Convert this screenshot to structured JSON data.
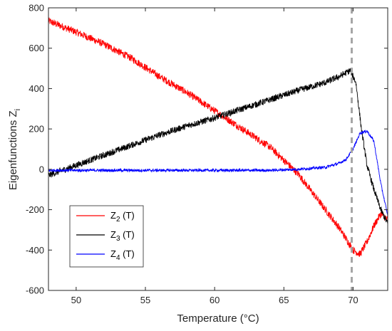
{
  "chart_data": {
    "type": "line",
    "xlabel": "Temperature (°C)",
    "ylabel": "Eigenfunctions Z",
    "ylabel_sub": "i",
    "xlim": [
      48,
      72.5
    ],
    "ylim": [
      -600,
      800
    ],
    "xticks": [
      50,
      55,
      60,
      65,
      70
    ],
    "yticks": [
      -600,
      -400,
      -200,
      0,
      200,
      400,
      600,
      800
    ],
    "grid": false,
    "legend_position": "bottom-left",
    "vline": {
      "x": 69.9,
      "color": "#a6a6a6",
      "style": "dashed"
    },
    "series": [
      {
        "name": "Z",
        "sub": "2",
        "suffix": " (T)",
        "color": "#ff0000",
        "noise": 18,
        "x": [
          48,
          50,
          52,
          54,
          56,
          58,
          60,
          62,
          64,
          66,
          68,
          69,
          70,
          70.5,
          71,
          71.5,
          72,
          72.5
        ],
        "y": [
          735,
          680,
          620,
          550,
          460,
          380,
          290,
          200,
          110,
          -20,
          -200,
          -290,
          -400,
          -420,
          -360,
          -280,
          -220,
          -250
        ]
      },
      {
        "name": "Z",
        "sub": "3",
        "suffix": " (T)",
        "color": "#000000",
        "noise": 16,
        "x": [
          48,
          50,
          52,
          54,
          56,
          58,
          60,
          62,
          64,
          66,
          68,
          69,
          69.8,
          70.2,
          70.6,
          71,
          71.5,
          72,
          72.5
        ],
        "y": [
          -30,
          20,
          70,
          120,
          170,
          215,
          255,
          300,
          345,
          390,
          430,
          460,
          490,
          430,
          200,
          20,
          -100,
          -200,
          -270
        ]
      },
      {
        "name": "Z",
        "sub": "4",
        "suffix": " (T)",
        "color": "#0000ff",
        "noise": 7,
        "x": [
          48,
          52,
          56,
          60,
          64,
          66,
          68,
          69,
          69.5,
          70,
          70.5,
          71,
          71.5,
          72,
          72.5
        ],
        "y": [
          -5,
          -5,
          -5,
          -5,
          -5,
          0,
          10,
          30,
          50,
          100,
          180,
          190,
          140,
          -70,
          -230
        ]
      }
    ]
  }
}
